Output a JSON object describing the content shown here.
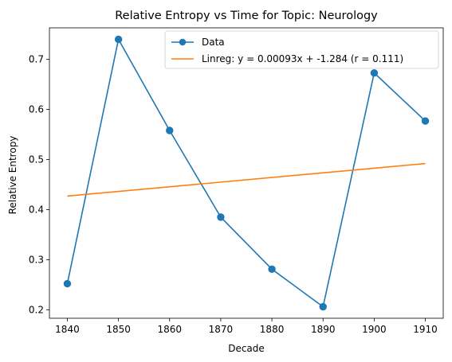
{
  "chart_data": {
    "type": "line",
    "title": "Relative Entropy vs Time for Topic: Neurology",
    "xlabel": "Decade",
    "ylabel": "Relative Entropy",
    "xlim": [
      1836.5,
      1913.5
    ],
    "ylim": [
      0.183,
      0.763
    ],
    "x_ticks": [
      1840,
      1850,
      1860,
      1870,
      1880,
      1890,
      1900,
      1910
    ],
    "y_ticks": [
      0.2,
      0.3,
      0.4,
      0.5,
      0.6,
      0.7
    ],
    "y_tick_labels": [
      "0.2",
      "0.3",
      "0.4",
      "0.5",
      "0.6",
      "0.7"
    ],
    "grid": false,
    "legend_position": "top-right",
    "series": [
      {
        "name": "Data",
        "kind": "line-markers",
        "color": "#1f77b4",
        "x": [
          1840,
          1850,
          1860,
          1870,
          1880,
          1890,
          1900,
          1910
        ],
        "y": [
          0.252,
          0.74,
          0.558,
          0.385,
          0.281,
          0.206,
          0.673,
          0.577
        ]
      },
      {
        "name": "Linreg: y = 0.00093x + -1.284 (r = 0.111)",
        "kind": "line",
        "color": "#ff7f0e",
        "x": [
          1840,
          1910
        ],
        "y": [
          0.427,
          0.492
        ]
      }
    ]
  }
}
